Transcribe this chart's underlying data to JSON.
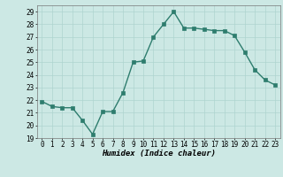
{
  "x": [
    0,
    1,
    2,
    3,
    4,
    5,
    6,
    7,
    8,
    9,
    10,
    11,
    12,
    13,
    14,
    15,
    16,
    17,
    18,
    19,
    20,
    21,
    22,
    23
  ],
  "y": [
    21.9,
    21.5,
    21.4,
    21.4,
    20.4,
    19.3,
    21.1,
    21.1,
    22.6,
    25.0,
    25.1,
    27.0,
    28.0,
    29.0,
    27.7,
    27.7,
    27.6,
    27.5,
    27.5,
    27.1,
    25.8,
    24.4,
    23.6,
    23.2
  ],
  "line_color": "#2e7d6e",
  "marker": "s",
  "marker_size": 2.2,
  "bg_color": "#cce8e4",
  "grid_color": "#aed4cf",
  "xlabel": "Humidex (Indice chaleur)",
  "ylim": [
    19,
    29.5
  ],
  "xlim": [
    -0.5,
    23.5
  ],
  "yticks": [
    19,
    20,
    21,
    22,
    23,
    24,
    25,
    26,
    27,
    28,
    29
  ],
  "xticks": [
    0,
    1,
    2,
    3,
    4,
    5,
    6,
    7,
    8,
    9,
    10,
    11,
    12,
    13,
    14,
    15,
    16,
    17,
    18,
    19,
    20,
    21,
    22,
    23
  ],
  "tick_fontsize": 5.5,
  "xlabel_fontsize": 6.5,
  "line_width": 1.0
}
